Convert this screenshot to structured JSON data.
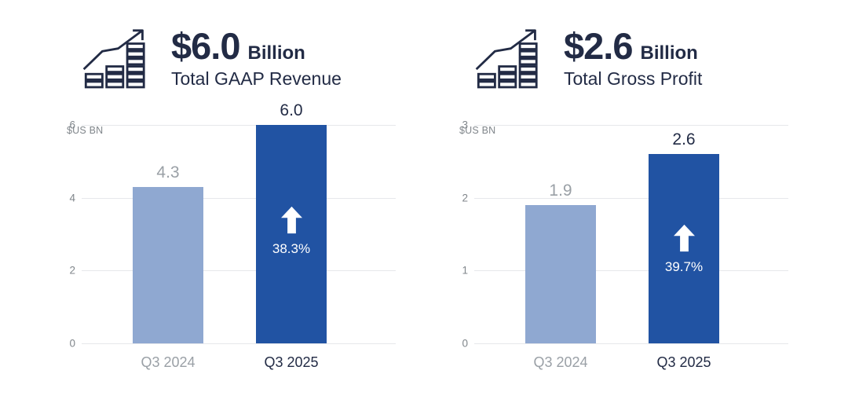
{
  "colors": {
    "navy_text": "#222B45",
    "gray_text": "#9AA0A6",
    "tick_gray": "#80868B",
    "gridline": "#E6E8EB",
    "bar_light_blue": "#8FA8D1",
    "bar_dark_blue": "#2153A3",
    "annotation_white": "#FFFFFF"
  },
  "panels": [
    {
      "icon": "growth-chart-icon",
      "headline_value": "$6.0",
      "headline_unit": "Billion",
      "headline_caption": "Total GAAP Revenue"
    },
    {
      "icon": "growth-chart-icon",
      "headline_value": "$2.6",
      "headline_unit": "Billion",
      "headline_caption": "Total Gross Profit"
    }
  ],
  "chart_data": [
    {
      "type": "bar",
      "title": "$6.0 Billion Total GAAP Revenue",
      "ylabel": "$US BN",
      "xlabel": "",
      "categories": [
        "Q3 2024",
        "Q3 2025"
      ],
      "values": [
        4.3,
        6.0
      ],
      "value_labels": [
        "4.3",
        "6.0"
      ],
      "yticks": [
        0,
        2,
        4,
        6
      ],
      "ylim": [
        0,
        6
      ],
      "grid": true,
      "legend": "none",
      "bar_colors": [
        "#8FA8D1",
        "#2153A3"
      ],
      "annotations": [
        {
          "target": "Q3 2025",
          "icon": "up-arrow-icon",
          "text": "38.3%"
        }
      ]
    },
    {
      "type": "bar",
      "title": "$2.6 Billion Total Gross Profit",
      "ylabel": "$US BN",
      "xlabel": "",
      "categories": [
        "Q3 2024",
        "Q3 2025"
      ],
      "values": [
        1.9,
        2.6
      ],
      "value_labels": [
        "1.9",
        "2.6"
      ],
      "yticks": [
        0,
        1,
        2,
        3
      ],
      "ylim": [
        0,
        3
      ],
      "grid": true,
      "legend": "none",
      "bar_colors": [
        "#8FA8D1",
        "#2153A3"
      ],
      "annotations": [
        {
          "target": "Q3 2025",
          "icon": "up-arrow-icon",
          "text": "39.7%"
        }
      ]
    }
  ]
}
